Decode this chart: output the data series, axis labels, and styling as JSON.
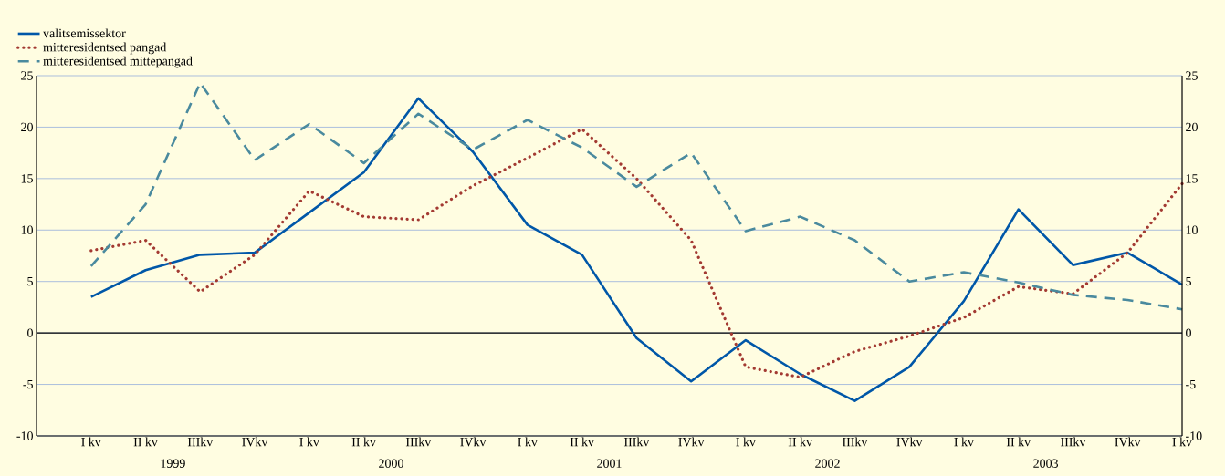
{
  "chart_data": {
    "type": "line",
    "categories": [
      "I kv",
      "II kv",
      "IIIkv",
      "IVkv",
      "I kv",
      "II kv",
      "IIIkv",
      "IVkv",
      "I kv",
      "II kv",
      "IIIkv",
      "IVkv",
      "I kv",
      "II kv",
      "IIIkv",
      "IVkv",
      "I kv",
      "II kv",
      "IIIkv",
      "IVkv",
      "I kv"
    ],
    "series": [
      {
        "name": "valitsemissektor",
        "color": "#0057a8",
        "line_style": "solid",
        "values": [
          3.5,
          6.1,
          7.6,
          7.8,
          11.7,
          15.6,
          22.8,
          17.6,
          10.5,
          7.6,
          -0.5,
          -4.7,
          -0.7,
          -4.0,
          -6.6,
          -3.3,
          3.1,
          12.0,
          6.6,
          7.8,
          4.7
        ]
      },
      {
        "name": "mitteresidentsed pangad",
        "color": "#a33a32",
        "line_style": "dotted",
        "values": [
          8.0,
          9.0,
          4.0,
          7.6,
          13.8,
          11.3,
          11.0,
          14.3,
          17.0,
          19.8,
          15.0,
          9.0,
          -3.3,
          -4.3,
          -1.8,
          -0.3,
          1.5,
          4.5,
          3.8,
          7.8,
          14.5
        ]
      },
      {
        "name": "mitteresidentsed mittepangad",
        "color": "#4a8a9e",
        "line_style": "dashed",
        "values": [
          6.5,
          12.5,
          24.3,
          16.8,
          20.3,
          16.5,
          21.3,
          17.8,
          20.7,
          18.0,
          14.2,
          17.5,
          9.9,
          11.3,
          9.0,
          5.0,
          5.9,
          4.9,
          3.7,
          3.2,
          2.3
        ]
      }
    ],
    "ylim": [
      -10,
      25
    ],
    "yticks": [
      -10,
      -5,
      0,
      5,
      10,
      15,
      20,
      25
    ],
    "y2lim": [
      -10,
      25
    ],
    "y2ticks": [
      -10,
      -5,
      0,
      5,
      10,
      15,
      20,
      25
    ],
    "grid": "y",
    "legend": "top left",
    "ref_lines": [
      {
        "axis": "y",
        "value": 0,
        "color": "#000000",
        "line_style": "solid"
      }
    ],
    "annotations": [
      "1999",
      "2000",
      "2001",
      "2002",
      "2003"
    ]
  }
}
